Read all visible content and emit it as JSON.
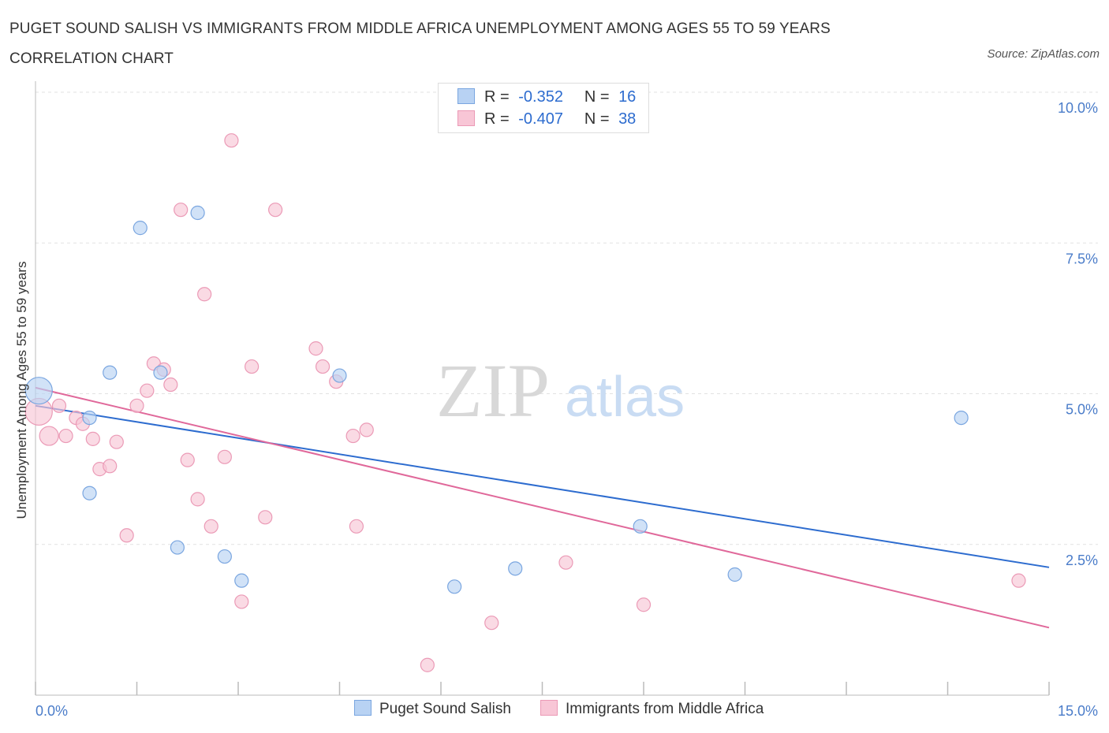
{
  "title": "PUGET SOUND SALISH VS IMMIGRANTS FROM MIDDLE AFRICA UNEMPLOYMENT AMONG AGES 55 TO 59 YEARS CORRELATION CHART",
  "source": "Source: ZipAtlas.com",
  "watermark": {
    "zip": "ZIP",
    "atlas": "atlas"
  },
  "legend": {
    "r_label": "R =",
    "n_label": "N =",
    "series": [
      {
        "name": "Puget Sound Salish",
        "r": "-0.352",
        "n": "16"
      },
      {
        "name": "Immigrants from Middle Africa",
        "r": "-0.407",
        "n": "38"
      }
    ]
  },
  "chart_data": {
    "type": "scatter",
    "title": "PUGET SOUND SALISH VS IMMIGRANTS FROM MIDDLE AFRICA UNEMPLOYMENT AMONG AGES 55 TO 59 YEARS CORRELATION CHART",
    "xlabel": "",
    "ylabel": "Unemployment Among Ages 55 to 59 years",
    "xlim": [
      0,
      15
    ],
    "ylim": [
      0,
      10
    ],
    "x_tick_labels": [
      "0.0%",
      "15.0%"
    ],
    "y_ticks": [
      2.5,
      5.0,
      7.5,
      10.0
    ],
    "y_tick_labels": [
      "2.5%",
      "5.0%",
      "7.5%",
      "10.0%"
    ],
    "grid": true,
    "legend_position": "top-center",
    "colors": {
      "Puget Sound Salish": {
        "fill": "#b8d2f3",
        "stroke": "#7aa6e0",
        "line": "#2d6ccf"
      },
      "Immigrants from Middle Africa": {
        "fill": "#f8c6d6",
        "stroke": "#eb9ab6",
        "line": "#e0689a"
      }
    },
    "series": [
      {
        "name": "Puget Sound Salish",
        "points": [
          {
            "x": 0.05,
            "y": 5.05,
            "size": "large"
          },
          {
            "x": 0.8,
            "y": 4.6
          },
          {
            "x": 0.8,
            "y": 3.35
          },
          {
            "x": 1.1,
            "y": 5.35
          },
          {
            "x": 1.55,
            "y": 7.75
          },
          {
            "x": 1.85,
            "y": 5.35
          },
          {
            "x": 2.1,
            "y": 2.45
          },
          {
            "x": 2.4,
            "y": 8.0
          },
          {
            "x": 2.8,
            "y": 2.3
          },
          {
            "x": 3.05,
            "y": 1.9
          },
          {
            "x": 4.5,
            "y": 5.3
          },
          {
            "x": 6.2,
            "y": 1.8
          },
          {
            "x": 7.1,
            "y": 2.1
          },
          {
            "x": 8.95,
            "y": 2.8
          },
          {
            "x": 10.35,
            "y": 2.0
          },
          {
            "x": 13.7,
            "y": 4.6
          }
        ],
        "trend": {
          "x": [
            0,
            15
          ],
          "y": [
            4.8,
            2.12
          ]
        }
      },
      {
        "name": "Immigrants from Middle Africa",
        "points": [
          {
            "x": 0.05,
            "y": 4.7,
            "size": "large"
          },
          {
            "x": 0.2,
            "y": 4.3,
            "size": "medium"
          },
          {
            "x": 0.35,
            "y": 4.8
          },
          {
            "x": 0.45,
            "y": 4.3
          },
          {
            "x": 0.6,
            "y": 4.6
          },
          {
            "x": 0.7,
            "y": 4.5
          },
          {
            "x": 0.85,
            "y": 4.25
          },
          {
            "x": 0.95,
            "y": 3.75
          },
          {
            "x": 1.1,
            "y": 3.8
          },
          {
            "x": 1.2,
            "y": 4.2
          },
          {
            "x": 1.35,
            "y": 2.65
          },
          {
            "x": 1.5,
            "y": 4.8
          },
          {
            "x": 1.65,
            "y": 5.05
          },
          {
            "x": 1.75,
            "y": 5.5
          },
          {
            "x": 1.9,
            "y": 5.4
          },
          {
            "x": 2.0,
            "y": 5.15
          },
          {
            "x": 2.15,
            "y": 8.05
          },
          {
            "x": 2.25,
            "y": 3.9
          },
          {
            "x": 2.4,
            "y": 3.25
          },
          {
            "x": 2.5,
            "y": 6.65
          },
          {
            "x": 2.6,
            "y": 2.8
          },
          {
            "x": 2.8,
            "y": 3.95
          },
          {
            "x": 2.9,
            "y": 9.2
          },
          {
            "x": 3.05,
            "y": 1.55
          },
          {
            "x": 3.2,
            "y": 5.45
          },
          {
            "x": 3.4,
            "y": 2.95
          },
          {
            "x": 3.55,
            "y": 8.05
          },
          {
            "x": 4.15,
            "y": 5.75
          },
          {
            "x": 4.25,
            "y": 5.45
          },
          {
            "x": 4.45,
            "y": 5.2
          },
          {
            "x": 4.7,
            "y": 4.3
          },
          {
            "x": 4.75,
            "y": 2.8
          },
          {
            "x": 4.9,
            "y": 4.4
          },
          {
            "x": 5.8,
            "y": 0.5
          },
          {
            "x": 6.75,
            "y": 1.2
          },
          {
            "x": 7.85,
            "y": 2.2
          },
          {
            "x": 9.0,
            "y": 1.5
          },
          {
            "x": 14.55,
            "y": 1.9
          }
        ],
        "trend": {
          "x": [
            0,
            15
          ],
          "y": [
            5.1,
            1.12
          ]
        }
      }
    ]
  }
}
